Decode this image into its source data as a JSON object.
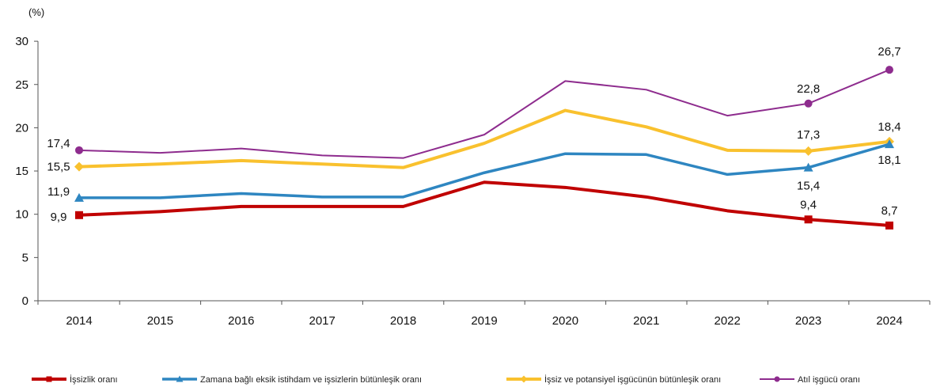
{
  "chart_data": {
    "type": "line",
    "unit_label": "(%)",
    "categories": [
      "2014",
      "2015",
      "2016",
      "2017",
      "2018",
      "2019",
      "2020",
      "2021",
      "2022",
      "2023",
      "2024"
    ],
    "ylim": [
      0,
      30
    ],
    "yticks": [
      0,
      5,
      10,
      15,
      20,
      25,
      30
    ],
    "grid": false,
    "legend_position": "bottom",
    "series": [
      {
        "name": "İşsizlik oranı",
        "color": "#c00000",
        "marker": "square",
        "values": [
          9.9,
          10.3,
          10.9,
          10.9,
          10.9,
          13.7,
          13.1,
          12.0,
          10.4,
          9.4,
          8.7
        ],
        "labels": [
          {
            "i": 0,
            "text": "9,9"
          },
          {
            "i": 9,
            "text": "9,4"
          },
          {
            "i": 10,
            "text": "8,7"
          }
        ]
      },
      {
        "name": "Zamana bağlı eksik istihdam ve işsizlerin bütünleşik oranı",
        "color": "#2e86c1",
        "marker": "triangle",
        "values": [
          11.9,
          11.9,
          12.4,
          12.0,
          12.0,
          14.8,
          17.0,
          16.9,
          14.6,
          15.4,
          18.1
        ],
        "labels": [
          {
            "i": 0,
            "text": "11,9"
          },
          {
            "i": 9,
            "text": "15,4"
          },
          {
            "i": 10,
            "text": "18,1"
          }
        ]
      },
      {
        "name": "İşsiz ve potansiyel işgücünün bütünleşik oranı",
        "color": "#f9c12e",
        "marker": "diamond",
        "values": [
          15.5,
          15.8,
          16.2,
          15.8,
          15.4,
          18.2,
          22.0,
          20.1,
          17.4,
          17.3,
          18.4
        ],
        "labels": [
          {
            "i": 0,
            "text": "15,5"
          },
          {
            "i": 9,
            "text": "17,3"
          },
          {
            "i": 10,
            "text": "18,4"
          }
        ]
      },
      {
        "name": "Atıl işgücü oranı",
        "color": "#8e2c8e",
        "marker": "circle",
        "values": [
          17.4,
          17.1,
          17.6,
          16.8,
          16.5,
          19.2,
          25.4,
          24.4,
          21.4,
          22.8,
          26.7
        ],
        "labels": [
          {
            "i": 0,
            "text": "17,4"
          },
          {
            "i": 9,
            "text": "22,8"
          },
          {
            "i": 10,
            "text": "26,7"
          }
        ]
      }
    ]
  }
}
